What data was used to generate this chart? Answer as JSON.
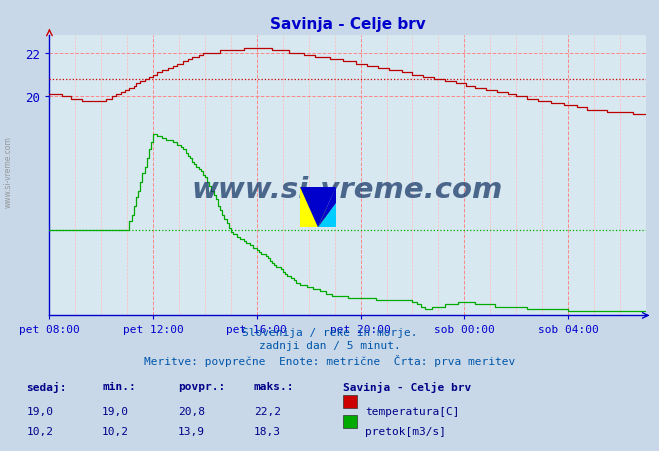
{
  "title": "Savinja - Celje brv",
  "title_color": "#0000cc",
  "bg_color": "#c8d8e8",
  "plot_bg_color": "#d8e8f0",
  "x_label_color": "#0000aa",
  "y_label_color": "#0000aa",
  "axis_color": "#0000cc",
  "subtitle_lines": [
    "Slovenija / reke in morje.",
    "zadnji dan / 5 minut.",
    "Meritve: povprečne  Enote: metrične  Črta: prva meritev"
  ],
  "subtitle_color": "#0055aa",
  "legend_title": "Savinja - Celje brv",
  "table_color": "#000088",
  "rows": [
    {
      "sedaj": "19,0",
      "min": "19,0",
      "povpr": "20,8",
      "maks": "22,2",
      "color": "#cc0000",
      "label": "temperatura[C]"
    },
    {
      "sedaj": "10,2",
      "min": "10,2",
      "povpr": "13,9",
      "maks": "18,3",
      "color": "#00aa00",
      "label": "pretok[m3/s]"
    }
  ],
  "x_ticks": [
    "pet 08:00",
    "pet 12:00",
    "pet 16:00",
    "pet 20:00",
    "sob 00:00",
    "sob 04:00"
  ],
  "x_tick_positions": [
    0,
    240,
    480,
    720,
    960,
    1200
  ],
  "x_max": 1380,
  "ylim": [
    10.0,
    22.8
  ],
  "temp_avg": 20.8,
  "flow_avg": 13.9,
  "watermark": "www.si-vreme.com",
  "watermark_color": "#1a3a6a",
  "table_headers": [
    "sedaj:",
    "min.:",
    "povpr.:",
    "maks.:"
  ]
}
